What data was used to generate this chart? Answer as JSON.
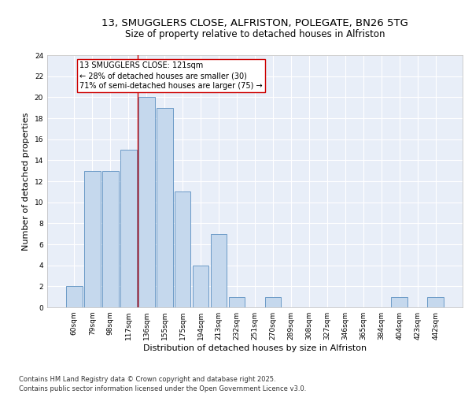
{
  "title_line1": "13, SMUGGLERS CLOSE, ALFRISTON, POLEGATE, BN26 5TG",
  "title_line2": "Size of property relative to detached houses in Alfriston",
  "xlabel": "Distribution of detached houses by size in Alfriston",
  "ylabel": "Number of detached properties",
  "categories": [
    "60sqm",
    "79sqm",
    "98sqm",
    "117sqm",
    "136sqm",
    "155sqm",
    "175sqm",
    "194sqm",
    "213sqm",
    "232sqm",
    "251sqm",
    "270sqm",
    "289sqm",
    "308sqm",
    "327sqm",
    "346sqm",
    "365sqm",
    "384sqm",
    "404sqm",
    "423sqm",
    "442sqm"
  ],
  "values": [
    2,
    13,
    13,
    15,
    20,
    19,
    11,
    4,
    7,
    1,
    0,
    1,
    0,
    0,
    0,
    0,
    0,
    0,
    1,
    0,
    1
  ],
  "bar_color": "#c5d8ed",
  "bar_edge_color": "#5a8fc0",
  "vline_x_index": 3.5,
  "vline_color": "#cc0000",
  "annotation_text": "13 SMUGGLERS CLOSE: 121sqm\n← 28% of detached houses are smaller (30)\n71% of semi-detached houses are larger (75) →",
  "annotation_box_color": "white",
  "annotation_box_edge": "#cc0000",
  "ylim": [
    0,
    24
  ],
  "yticks": [
    0,
    2,
    4,
    6,
    8,
    10,
    12,
    14,
    16,
    18,
    20,
    22,
    24
  ],
  "bg_color": "#e8eef8",
  "grid_color": "white",
  "footer": "Contains HM Land Registry data © Crown copyright and database right 2025.\nContains public sector information licensed under the Open Government Licence v3.0.",
  "title_fontsize": 9.5,
  "subtitle_fontsize": 8.5,
  "tick_fontsize": 6.5,
  "label_fontsize": 8,
  "annotation_fontsize": 7,
  "footer_fontsize": 6
}
